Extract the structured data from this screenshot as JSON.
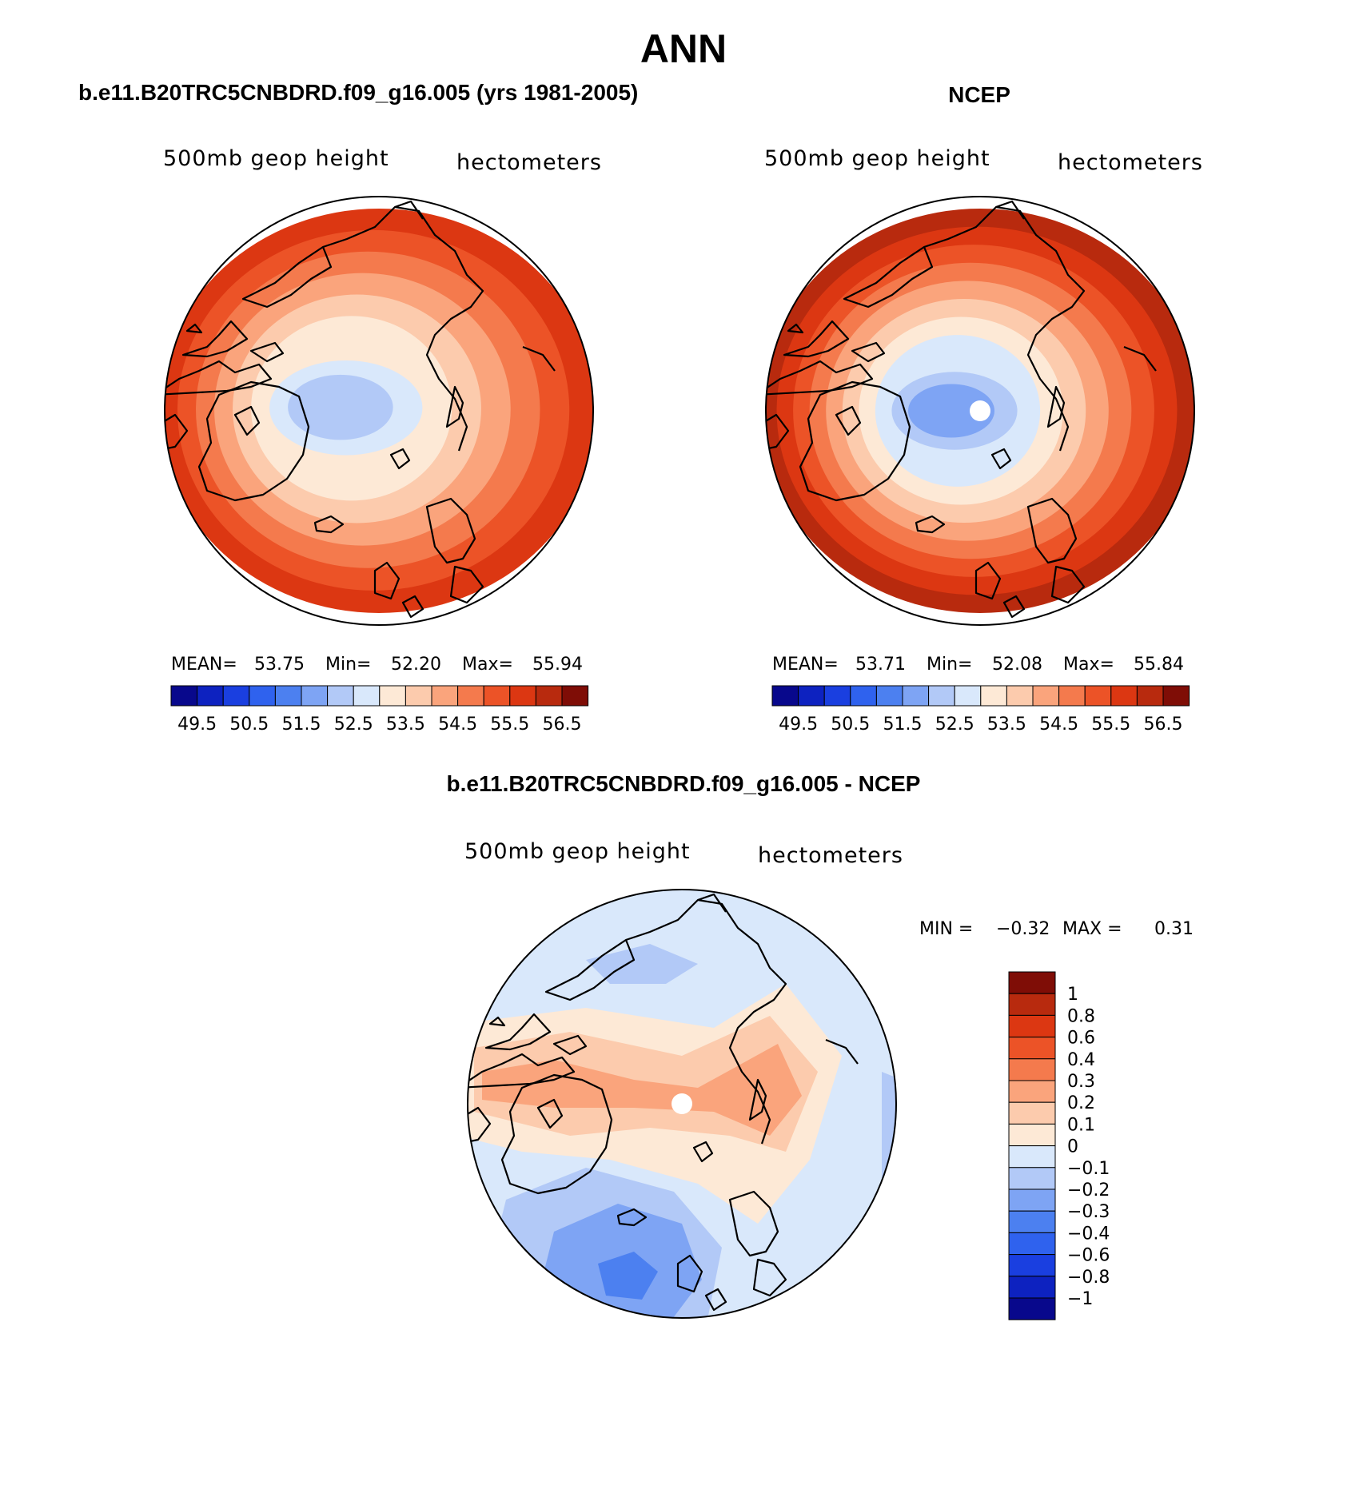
{
  "figure": {
    "title": "ANN",
    "season": "ANN"
  },
  "panels": [
    {
      "id": "model",
      "title": "b.e11.B20TRC5CNBDRD.f09_g16.005 (yrs 1981-2005)",
      "variable_label": "500mb geop height",
      "units_label": "hectometers",
      "stats": {
        "mean_label": "MEAN=",
        "mean": "53.75",
        "min_label": "Min=",
        "min": "52.20",
        "max_label": "Max=",
        "max": "55.94"
      },
      "pole_marker": false
    },
    {
      "id": "obs",
      "title": "NCEP",
      "variable_label": "500mb geop height",
      "units_label": "hectometers",
      "stats": {
        "mean_label": "MEAN=",
        "mean": "53.71",
        "min_label": "Min=",
        "min": "52.08",
        "max_label": "Max=",
        "max": "55.84"
      },
      "pole_marker": true
    },
    {
      "id": "diff",
      "title": "b.e11.B20TRC5CNBDRD.f09_g16.005 - NCEP",
      "variable_label": "500mb geop height",
      "units_label": "hectometers",
      "stats": {
        "min_label": "MIN =",
        "min": "−0.32",
        "max_label": "MAX =",
        "max": "0.31"
      },
      "pole_marker": true
    }
  ],
  "colorbars": {
    "absolute": {
      "ticks": [
        "49.5",
        "50.5",
        "51.5",
        "52.5",
        "53.5",
        "54.5",
        "55.5",
        "56.5"
      ],
      "colors": [
        "#08088c",
        "#0d22c0",
        "#1a3fe0",
        "#2f62ee",
        "#4c80f0",
        "#7ea4f4",
        "#b2c9f7",
        "#d9e8fb",
        "#fde9d6",
        "#fccbad",
        "#faa47c",
        "#f47a4d",
        "#ec5327",
        "#dc3712",
        "#b82a0e",
        "#7f0d06"
      ]
    },
    "difference": {
      "ticks": [
        "1",
        "0.8",
        "0.6",
        "0.4",
        "0.3",
        "0.2",
        "0.1",
        "0",
        "−0.1",
        "−0.2",
        "−0.3",
        "−0.4",
        "−0.6",
        "−0.8",
        "−1"
      ],
      "colors": [
        "#7f0d06",
        "#b82a0e",
        "#dc3712",
        "#ec5327",
        "#f47a4d",
        "#faa47c",
        "#fccbad",
        "#fde9d6",
        "#d9e8fb",
        "#b2c9f7",
        "#7ea4f4",
        "#4c80f0",
        "#2f62ee",
        "#1a3fe0",
        "#0d22c0",
        "#08088c"
      ]
    }
  },
  "fields": {
    "model": {
      "colors": [
        "#dc3712",
        "#ec5327",
        "#f47a4d",
        "#faa47c",
        "#fccbad",
        "#fde9d6",
        "#d9e8fb",
        "#b2c9f7"
      ]
    },
    "obs": {
      "colors": [
        "#b82a0e",
        "#dc3712",
        "#ec5327",
        "#f47a4d",
        "#faa47c",
        "#fccbad",
        "#fde9d6",
        "#d9e8fb",
        "#b2c9f7",
        "#7ea4f4"
      ]
    },
    "diff": {
      "base": "#d9e8fb",
      "patches": [
        {
          "name": "warm-band",
          "color": "#fde9d6"
        },
        {
          "name": "warm-core",
          "color": "#fccbad"
        },
        {
          "name": "warm-max",
          "color": "#faa47c"
        },
        {
          "name": "cool-ring",
          "color": "#b2c9f7"
        },
        {
          "name": "cool-core",
          "color": "#7ea4f4"
        },
        {
          "name": "cool-min",
          "color": "#4c80f0"
        }
      ]
    }
  }
}
